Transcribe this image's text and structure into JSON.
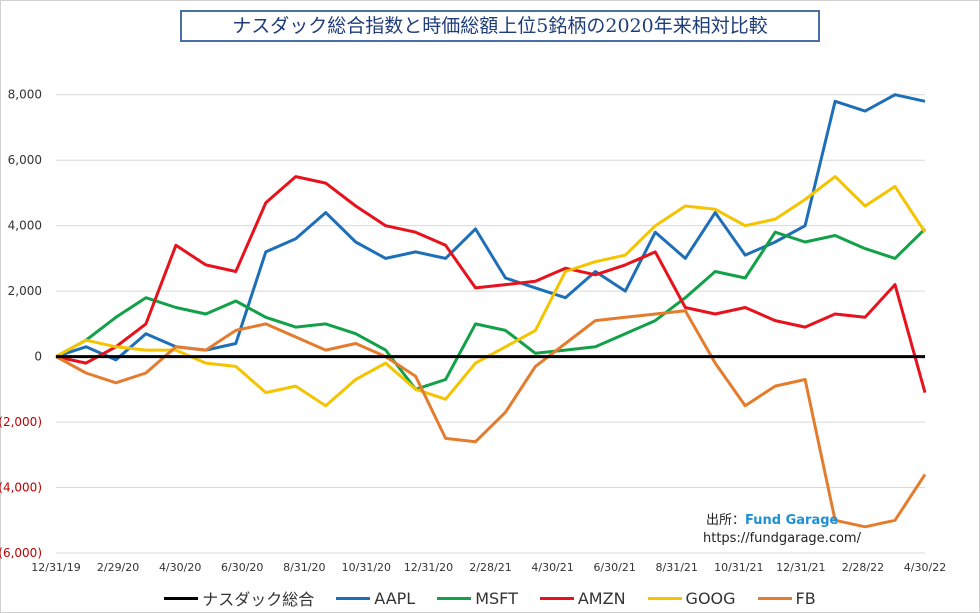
{
  "chart_data": {
    "type": "line",
    "title": "ナスダック総合指数と時価総額上位5銘柄の2020年来相対比較",
    "xlabel": "",
    "ylabel": "",
    "ylim": [
      -6000,
      9000
    ],
    "yticks": [
      8000,
      6000,
      4000,
      2000,
      0,
      -2000,
      -4000,
      -6000
    ],
    "ytick_labels": [
      "8,000",
      "6,000",
      "4,000",
      "2,000",
      "0",
      "(2,000)",
      "(4,000)",
      "(6,000)"
    ],
    "negative_tick_color": "#c00000",
    "x_tick_labels": [
      "12/31/19",
      "2/29/20",
      "4/30/20",
      "6/30/20",
      "8/31/20",
      "10/31/20",
      "12/31/20",
      "2/28/21",
      "4/30/21",
      "6/30/21",
      "8/31/21",
      "10/31/21",
      "12/31/21",
      "2/28/22",
      "4/30/22"
    ],
    "x": [
      0,
      1,
      2,
      3,
      4,
      5,
      6,
      7,
      8,
      9,
      10,
      11,
      12,
      13,
      14,
      15,
      16,
      17,
      18,
      19,
      20,
      21,
      22,
      23,
      24,
      25,
      26,
      27,
      28,
      29
    ],
    "series": [
      {
        "name": "ナスダック総合",
        "color": "#000000",
        "width": 3,
        "values": [
          0,
          0,
          0,
          0,
          0,
          0,
          0,
          0,
          0,
          0,
          0,
          0,
          0,
          0,
          0,
          0,
          0,
          0,
          0,
          0,
          0,
          0,
          0,
          0,
          0,
          0,
          0,
          0,
          0,
          0
        ]
      },
      {
        "name": "AAPL",
        "color": "#1f6fb8",
        "width": 3,
        "values": [
          0,
          300,
          -100,
          700,
          300,
          200,
          400,
          3200,
          3600,
          4400,
          3500,
          3000,
          3200,
          3000,
          3900,
          2400,
          2100,
          1800,
          2600,
          2000,
          3800,
          3000,
          4400,
          3100,
          3500,
          4000,
          7800,
          7500,
          8000,
          7800
        ]
      },
      {
        "name": "MSFT",
        "color": "#12a148",
        "width": 3,
        "values": [
          0,
          500,
          1200,
          1800,
          1500,
          1300,
          1700,
          1200,
          900,
          1000,
          700,
          200,
          -1000,
          -700,
          1000,
          800,
          100,
          200,
          300,
          700,
          1100,
          1800,
          2600,
          2400,
          3800,
          3500,
          3700,
          3300,
          3000,
          3900
        ]
      },
      {
        "name": "AMZN",
        "color": "#e8121c",
        "width": 3,
        "values": [
          0,
          -200,
          300,
          1000,
          3400,
          2800,
          2600,
          4700,
          5500,
          5300,
          4600,
          4000,
          3800,
          3400,
          2100,
          2200,
          2300,
          2700,
          2500,
          2800,
          3200,
          1500,
          1300,
          1500,
          1100,
          900,
          1300,
          1200,
          2200,
          -1100
        ]
      },
      {
        "name": "GOOG",
        "color": "#f5c400",
        "width": 3,
        "values": [
          0,
          500,
          300,
          200,
          200,
          -200,
          -300,
          -1100,
          -900,
          -1500,
          -700,
          -200,
          -1000,
          -1300,
          -200,
          300,
          800,
          2600,
          2900,
          3100,
          4000,
          4600,
          4500,
          4000,
          4200,
          4800,
          5500,
          4600,
          5200,
          3800
        ]
      },
      {
        "name": "FB",
        "color": "#e47c2e",
        "width": 3,
        "values": [
          0,
          -500,
          -800,
          -500,
          300,
          200,
          800,
          1000,
          600,
          200,
          400,
          0,
          -600,
          -2500,
          -2600,
          -1700,
          -300,
          400,
          1100,
          1200,
          1300,
          1400,
          -200,
          -1500,
          -900,
          -700,
          -5000,
          -5200,
          -5000,
          -3600
        ]
      }
    ]
  },
  "source": {
    "label": "出所：",
    "name": "Fund Garage",
    "url": "https://fundgarage.com/"
  }
}
